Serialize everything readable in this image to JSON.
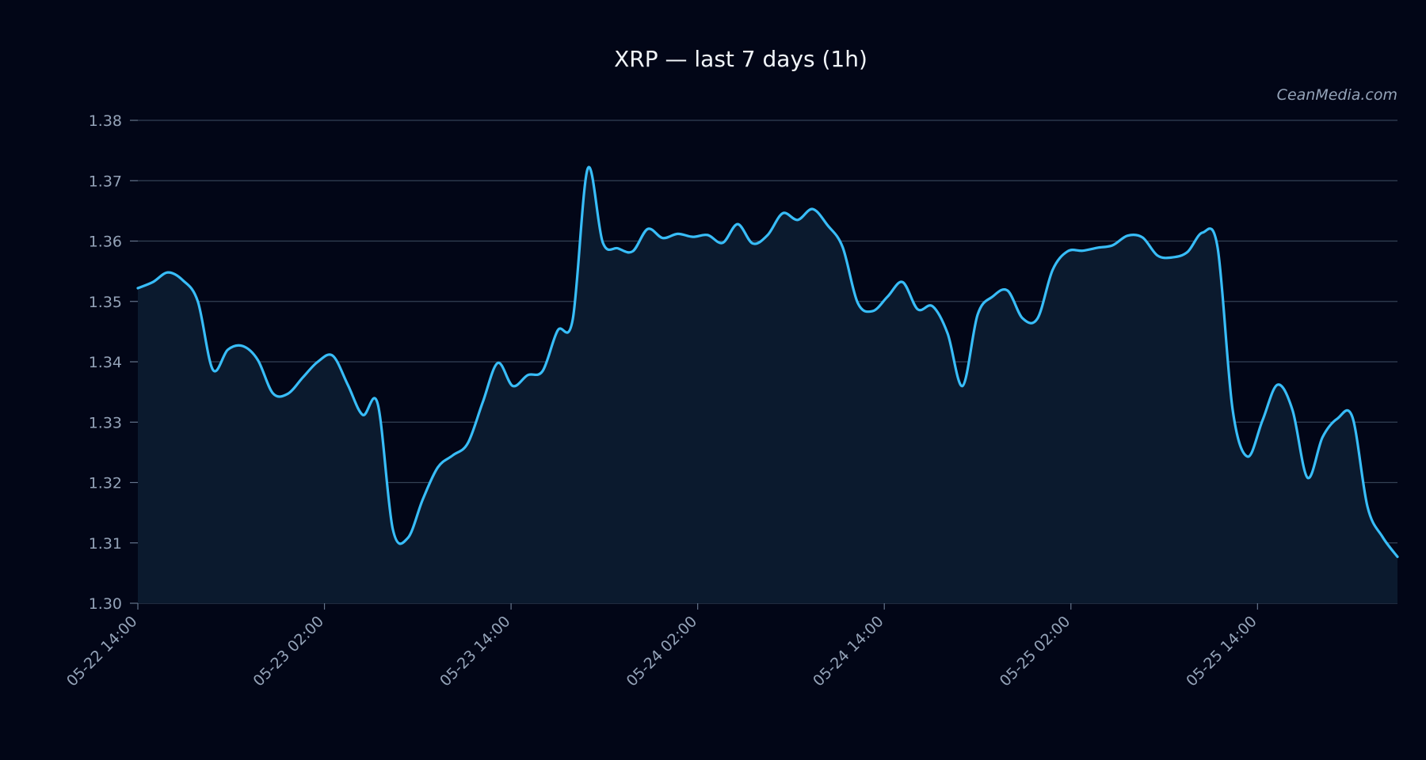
{
  "chart_data": {
    "type": "area",
    "title": "XRP — last 7 days (1h)",
    "watermark": "CeanMedia.com",
    "xlabel": "",
    "ylabel": "",
    "ylim": [
      1.3,
      1.38
    ],
    "y_ticks": [
      "1.30",
      "1.31",
      "1.32",
      "1.33",
      "1.34",
      "1.35",
      "1.36",
      "1.37",
      "1.38"
    ],
    "x_start": "05-22 14:00",
    "x_end": "05-25 23:00",
    "x_ticks": [
      "05-22 14:00",
      "05-23 02:00",
      "05-23 14:00",
      "05-24 02:00",
      "05-24 14:00",
      "05-25 02:00",
      "05-25 14:00"
    ],
    "grid": true,
    "legend": "none",
    "series": [
      {
        "color": "#38bdf8",
        "fill": "#0b1a2e",
        "values": [
          1.3522,
          1.3532,
          1.3548,
          1.3535,
          1.35,
          1.3387,
          1.342,
          1.3426,
          1.3403,
          1.3348,
          1.3347,
          1.3374,
          1.34,
          1.341,
          1.3362,
          1.3312,
          1.333,
          1.3123,
          1.3108,
          1.3172,
          1.3225,
          1.3245,
          1.3265,
          1.3333,
          1.3398,
          1.336,
          1.3378,
          1.3385,
          1.3452,
          1.347,
          1.372,
          1.3598,
          1.3588,
          1.3583,
          1.362,
          1.3605,
          1.3612,
          1.3607,
          1.361,
          1.3597,
          1.3628,
          1.3596,
          1.361,
          1.3646,
          1.3635,
          1.3653,
          1.3626,
          1.359,
          1.3498,
          1.3484,
          1.3508,
          1.3532,
          1.3487,
          1.3492,
          1.3447,
          1.336,
          1.3478,
          1.3508,
          1.3518,
          1.3472,
          1.3472,
          1.3552,
          1.3583,
          1.3584,
          1.3589,
          1.3593,
          1.3609,
          1.3606,
          1.3576,
          1.3573,
          1.3582,
          1.3614,
          1.359,
          1.3322,
          1.3243,
          1.3303,
          1.3362,
          1.332,
          1.3208,
          1.3275,
          1.3306,
          1.3308,
          1.316,
          1.311,
          1.3077
        ]
      }
    ]
  }
}
